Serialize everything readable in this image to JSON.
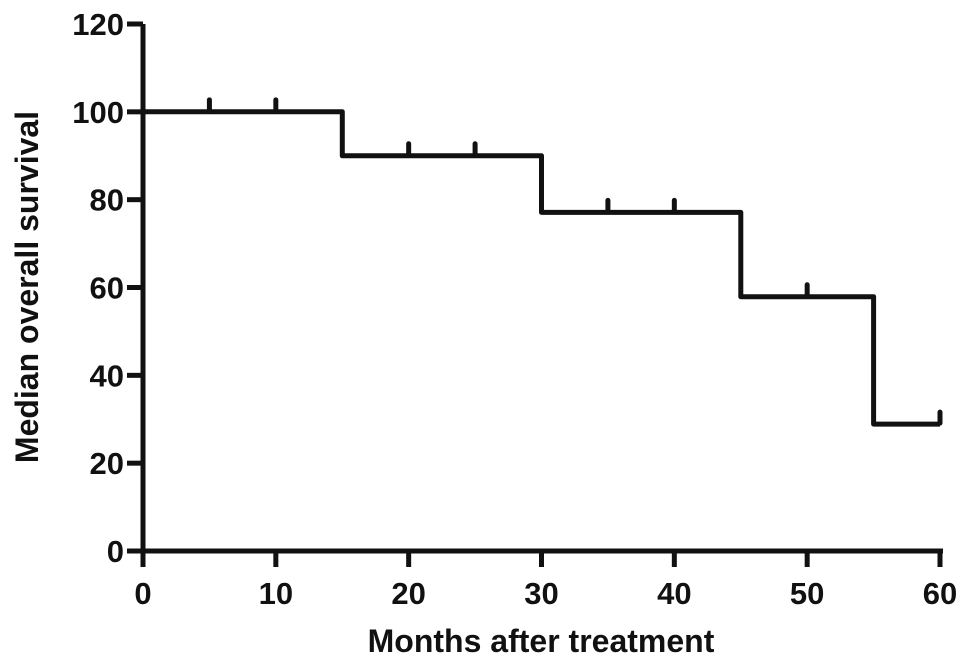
{
  "figure": {
    "background_color": "#ffffff",
    "axis_color": "#111111",
    "curve_color": "#111111",
    "text_color": "#111111"
  },
  "chart_data": {
    "type": "line",
    "subtype": "kaplan_meier_step",
    "title": "",
    "xlabel": "Months after treatment",
    "ylabel": "Median overall survival",
    "xlim": [
      0,
      60
    ],
    "ylim": [
      0,
      120
    ],
    "xticks": [
      0,
      10,
      20,
      30,
      40,
      50,
      60
    ],
    "yticks": [
      0,
      20,
      40,
      60,
      80,
      100,
      120
    ],
    "grid": false,
    "legend": "none",
    "series": [
      {
        "name": "Median overall survival",
        "color": "#111111",
        "step_points": [
          [
            0,
            100
          ],
          [
            15,
            100
          ],
          [
            15,
            90
          ],
          [
            30,
            90
          ],
          [
            30,
            77.1
          ],
          [
            45,
            77.1
          ],
          [
            45,
            57.9
          ],
          [
            55,
            57.9
          ],
          [
            55,
            28.9
          ],
          [
            60,
            28.9
          ]
        ],
        "censor_marks": [
          [
            5,
            100
          ],
          [
            10,
            100
          ],
          [
            20,
            90
          ],
          [
            25,
            90
          ],
          [
            35,
            77.1
          ],
          [
            40,
            77.1
          ],
          [
            50,
            57.9
          ],
          [
            60,
            28.9
          ]
        ]
      }
    ]
  }
}
